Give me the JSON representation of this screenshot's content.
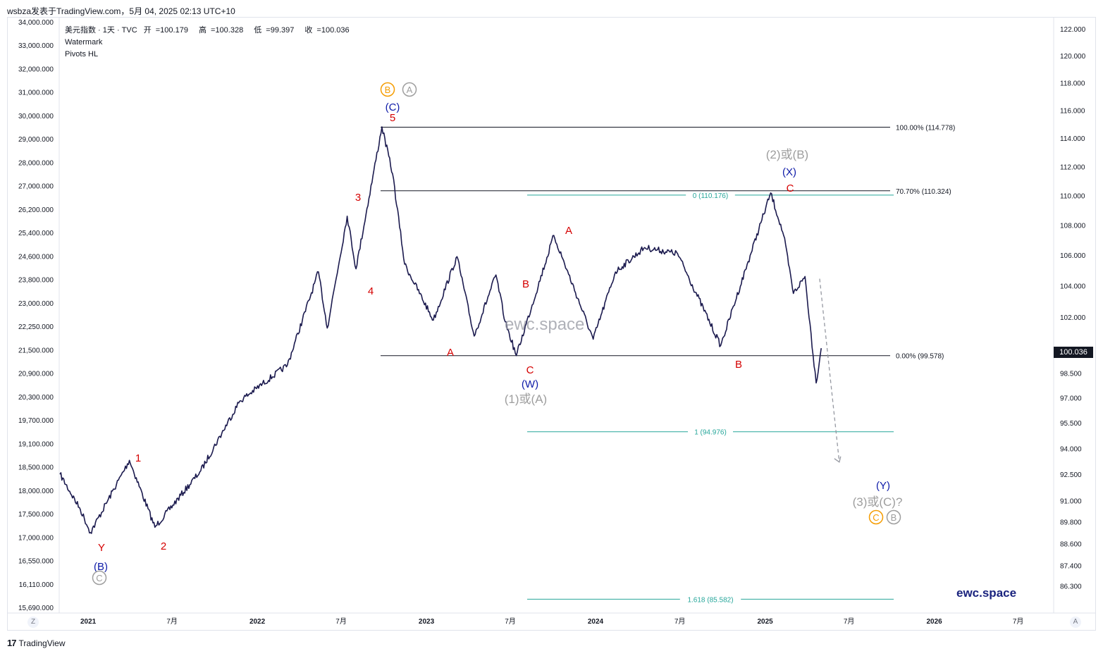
{
  "top_bar": "wsbza发表于TradingView.com，5月 04, 2025 02:13 UTC+10",
  "legend": {
    "symbol": "美元指数 · 1天 · TVC",
    "open_label": "开",
    "open": "100.179",
    "high_label": "高",
    "high": "100.328",
    "low_label": "低",
    "low": "99.397",
    "close_label": "收",
    "close": "100.036",
    "indicators": [
      "Watermark",
      "Pivots HL"
    ]
  },
  "watermark_center": "ewc.space",
  "brand": "ewc.space",
  "footer_logo": "17",
  "footer_text": "TradingView",
  "current_price": "100.036",
  "axis_buttons": {
    "left": "Z",
    "right": "A"
  },
  "colors": {
    "candle": "#1b1a4e",
    "red_label": "#d50000",
    "blue_label": "#0d1aa8",
    "gray_label": "#9e9e9e",
    "orange": "#f59c00",
    "teal": "#26a69a"
  },
  "chart_data": {
    "type": "line",
    "title": "",
    "xlabel": "",
    "ylabel": "",
    "x_ticks": [
      "2021",
      "7月",
      "2022",
      "7月",
      "2023",
      "7月",
      "2024",
      "7月",
      "2025",
      "7月",
      "2026",
      "7月"
    ],
    "left_axis_ticks": [
      "34,000.000",
      "33,000.000",
      "32,000.000",
      "31,000.000",
      "30,000.000",
      "29,000.000",
      "28,000.000",
      "27,000.000",
      "26,200.000",
      "25,400.000",
      "24,600.000",
      "23,800.000",
      "23,000.000",
      "22,250.000",
      "21,500.000",
      "20,900.000",
      "20,300.000",
      "19,700.000",
      "19,100.000",
      "18,500.000",
      "18,000.000",
      "17,500.000",
      "17,000.000",
      "16,550.000",
      "16,110.000",
      "15,690.000"
    ],
    "right_axis_ticks": [
      "122.000",
      "120.000",
      "118.000",
      "116.000",
      "114.000",
      "112.000",
      "110.000",
      "108.000",
      "106.000",
      "104.000",
      "102.000",
      "100.000",
      "98.500",
      "97.000",
      "95.500",
      "94.000",
      "92.500",
      "91.000",
      "89.800",
      "88.600",
      "87.400",
      "86.300"
    ],
    "series": [
      {
        "x": [
          "2020-11-01",
          "2020-12-15",
          "2021-01-06",
          "2021-03-31",
          "2021-05-25",
          "2021-09-01",
          "2021-11-24",
          "2022-03-07",
          "2022-05-13",
          "2022-06-01",
          "2022-07-14",
          "2022-08-02",
          "2022-09-27",
          "2022-10-20",
          "2022-11-15",
          "2023-01-16",
          "2023-03-08",
          "2023-04-14",
          "2023-05-31",
          "2023-06-20",
          "2023-07-14",
          "2023-10-03",
          "2023-12-27",
          "2024-02-13",
          "2024-04-16",
          "2024-06-26",
          "2024-09-27",
          "2025-01-13",
          "2025-02-10",
          "2025-03-03",
          "2025-03-28",
          "2025-04-21",
          "2025-05-02"
        ],
        "values": [
          92.5,
          90.5,
          89.2,
          93.3,
          89.5,
          92.7,
          96.8,
          99.0,
          104.9,
          101.3,
          108.6,
          105.1,
          114.8,
          111.5,
          105.4,
          101.8,
          105.9,
          100.8,
          104.7,
          101.7,
          99.58,
          107.3,
          100.6,
          104.9,
          106.5,
          106.1,
          100.2,
          110.18,
          107.3,
          103.5,
          104.6,
          97.9,
          100.04
        ]
      }
    ],
    "fib_levels": [
      {
        "label": "100.00% (114.778)",
        "value": 114.778
      },
      {
        "label": "70.70% (110.324)",
        "value": 110.324
      },
      {
        "label": "0.00% (99.578)",
        "value": 99.578
      },
      {
        "label": "0 (110.176)",
        "value": 110.176
      },
      {
        "label": "1 (94.976)",
        "value": 94.976
      },
      {
        "label": "1.618 (85.582)",
        "value": 85.582
      }
    ],
    "wave_labels": [
      {
        "text": "Y",
        "color": "red",
        "x": "2021-01-06",
        "y": 89.2
      },
      {
        "text": "(B)",
        "color": "blue",
        "x": "2021-01-06",
        "y": 89.2
      },
      {
        "text": "C",
        "color": "gray-circle",
        "x": "2021-01-06",
        "y": 89.2
      },
      {
        "text": "1",
        "color": "red",
        "x": "2021-03-31",
        "y": 93.3
      },
      {
        "text": "2",
        "color": "red",
        "x": "2021-05-25",
        "y": 89.5
      },
      {
        "text": "3",
        "color": "red",
        "x": "2022-05-13",
        "y": 104.9
      },
      {
        "text": "4",
        "color": "red",
        "x": "2022-06-01",
        "y": 101.3
      },
      {
        "text": "5",
        "color": "red",
        "x": "2022-09-27",
        "y": 114.8
      },
      {
        "text": "(C)",
        "color": "blue",
        "x": "2022-09-27",
        "y": 114.8
      },
      {
        "text": "B",
        "color": "orange-circle",
        "x": "2022-09-27",
        "y": 114.8
      },
      {
        "text": "A",
        "color": "gray-circle",
        "x": "2022-09-27",
        "y": 114.8
      },
      {
        "text": "A",
        "color": "red",
        "x": "2023-01-16",
        "y": 101.8
      },
      {
        "text": "B",
        "color": "red",
        "x": "2023-06-01",
        "y": 104.2
      },
      {
        "text": "C",
        "color": "red",
        "x": "2023-07-14",
        "y": 99.58
      },
      {
        "text": "(W)",
        "color": "blue",
        "x": "2023-07-14",
        "y": 99.58
      },
      {
        "text": "(1)或(A)",
        "color": "gray",
        "x": "2023-07-14",
        "y": 99.58
      },
      {
        "text": "A",
        "color": "red",
        "x": "2023-10-03",
        "y": 107.3
      },
      {
        "text": "B",
        "color": "red",
        "x": "2024-09-27",
        "y": 100.2
      },
      {
        "text": "C",
        "color": "red",
        "x": "2025-01-13",
        "y": 110.18
      },
      {
        "text": "(X)",
        "color": "blue",
        "x": "2025-01-13",
        "y": 110.18
      },
      {
        "text": "(2)或(B)",
        "color": "gray",
        "x": "2025-01-13",
        "y": 110.18
      },
      {
        "text": "(Y)",
        "color": "blue",
        "x": "2025-06-01",
        "y": 92.5
      },
      {
        "text": "(3)或(C)?",
        "color": "gray",
        "x": "2025-06-01",
        "y": 92.5
      },
      {
        "text": "C",
        "color": "orange-circle",
        "x": "2025-06-01",
        "y": 92.5
      },
      {
        "text": "B",
        "color": "gray-circle",
        "x": "2025-06-01",
        "y": 92.5
      }
    ],
    "projection": {
      "from": [
        "2025-04-21",
        104.0
      ],
      "to": [
        "2025-06-10",
        93.2
      ],
      "style": "dashed"
    },
    "grid": false,
    "legend": "top-left"
  }
}
